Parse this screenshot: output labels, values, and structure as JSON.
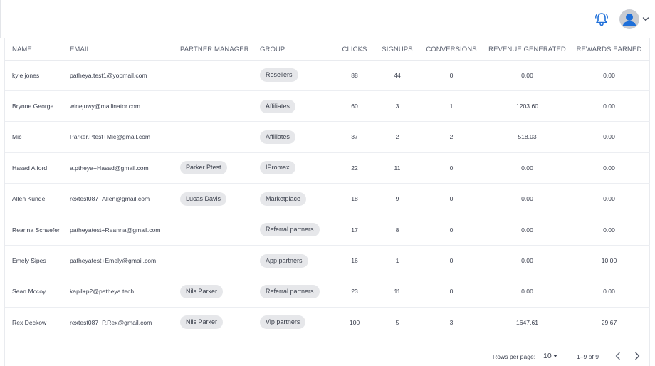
{
  "header": {
    "icons": {
      "notifications": "bell-icon",
      "account": "user-avatar-icon",
      "menu": "chevron-down-icon"
    },
    "accent_color": "#1e6fd9"
  },
  "table": {
    "columns": [
      "NAME",
      "EMAIL",
      "PARTNER MANAGER",
      "GROUP",
      "CLICKS",
      "SIGNUPS",
      "CONVERSIONS",
      "REVENUE GENERATED",
      "REWARDS EARNED"
    ],
    "rows": [
      {
        "name": "kyle jones",
        "email": "patheya.test1@yopmail.com",
        "manager": "",
        "group": "Resellers",
        "clicks": "88",
        "signups": "44",
        "conversions": "0",
        "revenue": "0.00",
        "rewards": "0.00"
      },
      {
        "name": "Brynne George",
        "email": "winejuwy@mailinator.com",
        "manager": "",
        "group": "Affiliates",
        "clicks": "60",
        "signups": "3",
        "conversions": "1",
        "revenue": "1203.60",
        "rewards": "0.00"
      },
      {
        "name": "Mic",
        "email": "Parker.Ptest+Mic@gmail.com",
        "manager": "",
        "group": "Affiliates",
        "clicks": "37",
        "signups": "2",
        "conversions": "2",
        "revenue": "518.03",
        "rewards": "0.00"
      },
      {
        "name": "Hasad Alford",
        "email": "a.ptheya+Hasad@gmail.com",
        "manager": "Parker Ptest",
        "group": "IPromax",
        "clicks": "22",
        "signups": "11",
        "conversions": "0",
        "revenue": "0.00",
        "rewards": "0.00"
      },
      {
        "name": "Allen Kunde",
        "email": "rextest087+Allen@gmail.com",
        "manager": "Lucas Davis",
        "group": "Marketplace",
        "clicks": "18",
        "signups": "9",
        "conversions": "0",
        "revenue": "0.00",
        "rewards": "0.00"
      },
      {
        "name": "Reanna Schaefer",
        "email": "patheyatest+Reanna@gmail.com",
        "manager": "",
        "group": "Referral partners",
        "clicks": "17",
        "signups": "8",
        "conversions": "0",
        "revenue": "0.00",
        "rewards": "0.00"
      },
      {
        "name": "Emely Sipes",
        "email": "patheyatest+Emely@gmail.com",
        "manager": "",
        "group": "App partners",
        "clicks": "16",
        "signups": "1",
        "conversions": "0",
        "revenue": "0.00",
        "rewards": "10.00"
      },
      {
        "name": "Sean Mccoy",
        "email": "kapil+p2@patheya.tech",
        "manager": "Nils Parker",
        "group": "Referral partners",
        "clicks": "23",
        "signups": "11",
        "conversions": "0",
        "revenue": "0.00",
        "rewards": "0.00"
      },
      {
        "name": "Rex Deckow",
        "email": "rextest087+P.Rex@gmail.com",
        "manager": "Nils Parker",
        "group": "Vip partners",
        "clicks": "100",
        "signups": "5",
        "conversions": "3",
        "revenue": "1647.61",
        "rewards": "29.67"
      }
    ]
  },
  "pagination": {
    "rows_per_page_label": "Rows per page:",
    "rows_per_page_value": "10",
    "range_text": "1–9 of 9",
    "icons": {
      "prev": "chevron-left-icon",
      "next": "chevron-right-icon"
    }
  }
}
